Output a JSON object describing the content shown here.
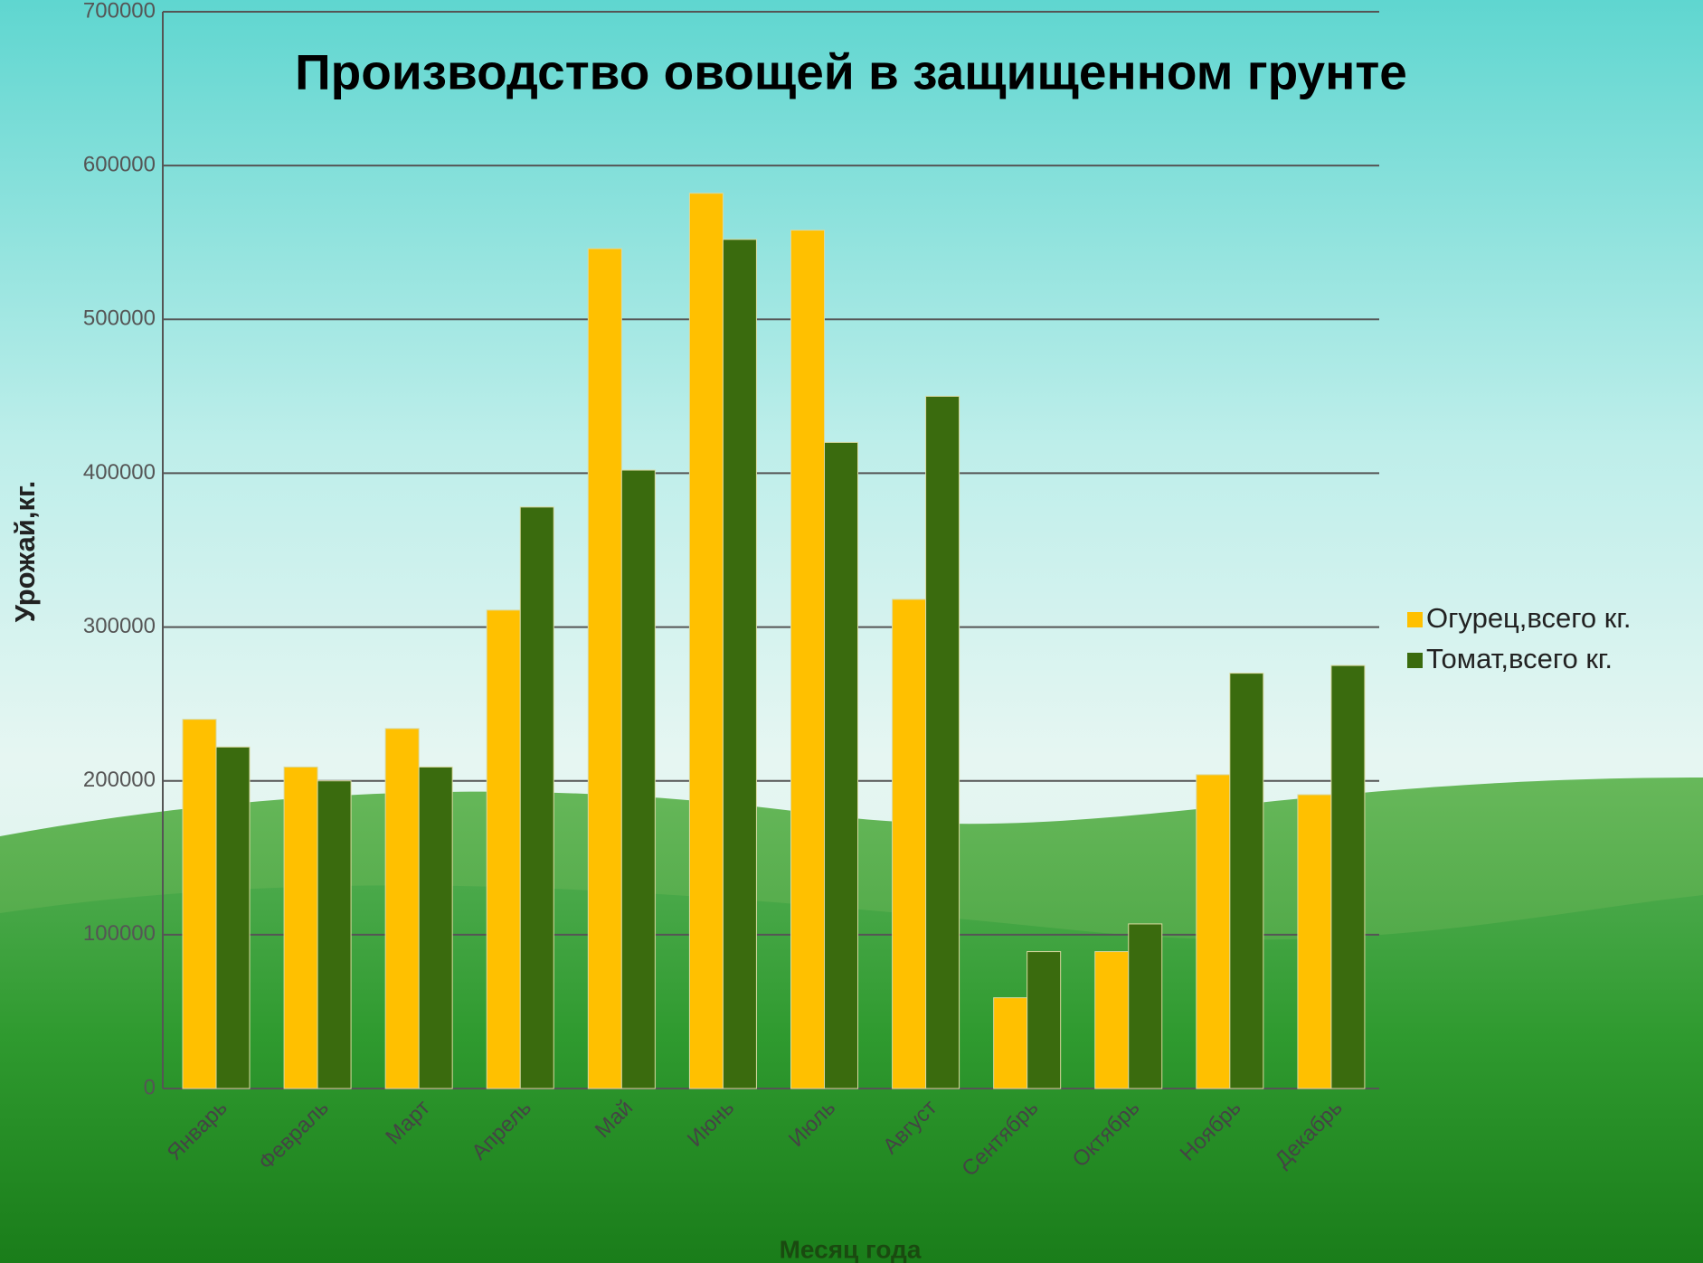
{
  "chart_data": {
    "type": "bar",
    "title": "Производство овощей в защищенном грунте",
    "xlabel": "Месяц года",
    "ylabel": "Урожай,кг.",
    "categories": [
      "Январь",
      "Февраль",
      "Март",
      "Апрель",
      "Май",
      "Июнь",
      "Июль",
      "Август",
      "Сентябрь",
      "Октябрь",
      "Ноябрь",
      "Декабрь"
    ],
    "series": [
      {
        "name": "Огурец,всего кг.",
        "color": "#ffc000",
        "values": [
          240000,
          209000,
          234000,
          311000,
          546000,
          582000,
          558000,
          318000,
          59000,
          89000,
          204000,
          191000
        ]
      },
      {
        "name": "Томат,всего кг.",
        "color": "#3a6b0e",
        "values": [
          222000,
          200000,
          209000,
          378000,
          402000,
          552000,
          420000,
          450000,
          89000,
          107000,
          270000,
          275000
        ]
      }
    ],
    "ylim": [
      0,
      700000
    ],
    "yticks": [
      0,
      100000,
      200000,
      300000,
      400000,
      500000,
      600000,
      700000
    ],
    "grid": true,
    "legend": "right"
  }
}
